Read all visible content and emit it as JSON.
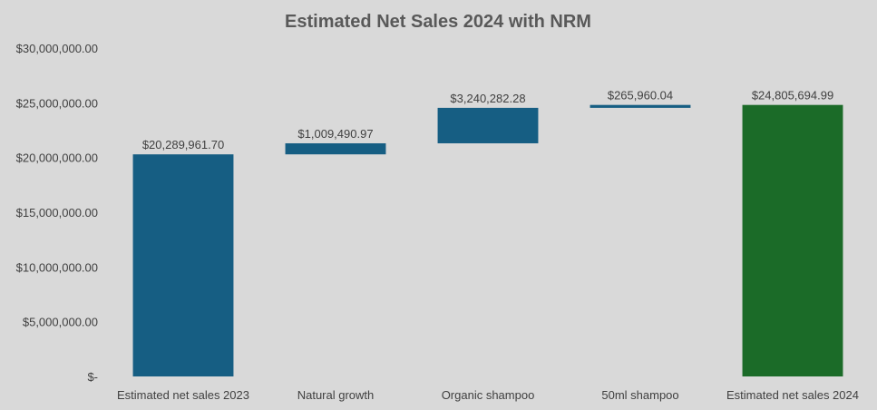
{
  "chart_data": {
    "type": "bar",
    "subtype": "waterfall",
    "title": "Estimated Net Sales 2024 with NRM",
    "xlabel": "",
    "ylabel": "",
    "ylim": [
      0,
      30000000
    ],
    "yticks": [
      "$-",
      "$5,000,000.00",
      "$10,000,000.00",
      "$15,000,000.00",
      "$20,000,000.00",
      "$25,000,000.00",
      "$30,000,000.00"
    ],
    "grid": false,
    "legend": "none",
    "categories": [
      "Estimated net sales 2023",
      "Natural growth",
      "Organic shampoo",
      "50ml shampoo",
      "Estimated net sales 2024"
    ],
    "values": [
      20289961.7,
      1009490.97,
      3240282.28,
      265960.04,
      24805694.99
    ],
    "bar_kind": [
      "total",
      "increase",
      "increase",
      "increase",
      "total"
    ],
    "data_labels": [
      "$20,289,961.70",
      "$1,009,490.97",
      "$3,240,282.28",
      "$265,960.04",
      "$24,805,694.99"
    ],
    "colors": {
      "increase": "#165e83",
      "total_start": "#165e83",
      "total_end": "#1b6b28",
      "background": "#d9d9d9",
      "text": "#404040",
      "title": "#595959"
    }
  }
}
